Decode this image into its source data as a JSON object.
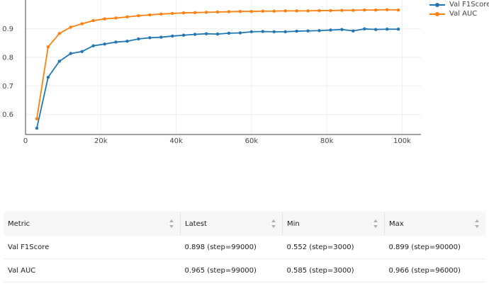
{
  "chart_data": {
    "type": "line",
    "title": "",
    "xlabel": "",
    "ylabel": "",
    "xlim": [
      0,
      105000
    ],
    "ylim": [
      0.53,
      1.0
    ],
    "x_ticks": [
      0,
      20000,
      40000,
      60000,
      80000,
      100000
    ],
    "x_tick_labels": [
      "0",
      "20k",
      "40k",
      "60k",
      "80k",
      "100k"
    ],
    "y_ticks": [
      0.6,
      0.7,
      0.8,
      0.9
    ],
    "y_tick_labels": [
      "0.6",
      "0.7",
      "0.8",
      "0.9"
    ],
    "grid": true,
    "legend_position": "top-right",
    "x": [
      3000,
      6000,
      9000,
      12000,
      15000,
      18000,
      21000,
      24000,
      27000,
      30000,
      33000,
      36000,
      39000,
      42000,
      45000,
      48000,
      51000,
      54000,
      57000,
      60000,
      63000,
      66000,
      69000,
      72000,
      75000,
      78000,
      81000,
      84000,
      87000,
      90000,
      93000,
      96000,
      99000
    ],
    "series": [
      {
        "name": "Val F1Score",
        "color": "#1f77b4",
        "values": [
          0.552,
          0.73,
          0.786,
          0.813,
          0.82,
          0.84,
          0.846,
          0.853,
          0.856,
          0.864,
          0.868,
          0.87,
          0.874,
          0.877,
          0.88,
          0.882,
          0.881,
          0.884,
          0.885,
          0.889,
          0.89,
          0.889,
          0.889,
          0.891,
          0.892,
          0.893,
          0.895,
          0.897,
          0.892,
          0.899,
          0.897,
          0.898,
          0.898
        ]
      },
      {
        "name": "Val AUC",
        "color": "#ff7f0e",
        "values": [
          0.585,
          0.836,
          0.883,
          0.905,
          0.917,
          0.928,
          0.934,
          0.937,
          0.941,
          0.945,
          0.948,
          0.951,
          0.953,
          0.955,
          0.956,
          0.957,
          0.958,
          0.959,
          0.96,
          0.96,
          0.961,
          0.961,
          0.962,
          0.962,
          0.962,
          0.963,
          0.963,
          0.964,
          0.964,
          0.965,
          0.965,
          0.966,
          0.965
        ]
      }
    ]
  },
  "table": {
    "headers": [
      "Metric",
      "Latest",
      "Min",
      "Max"
    ],
    "rows": [
      {
        "metric": "Val F1Score",
        "latest": "0.898 (step=99000)",
        "min": "0.552 (step=3000)",
        "max": "0.899 (step=90000)"
      },
      {
        "metric": "Val AUC",
        "latest": "0.965 (step=99000)",
        "min": "0.585 (step=3000)",
        "max": "0.966 (step=96000)"
      }
    ]
  }
}
